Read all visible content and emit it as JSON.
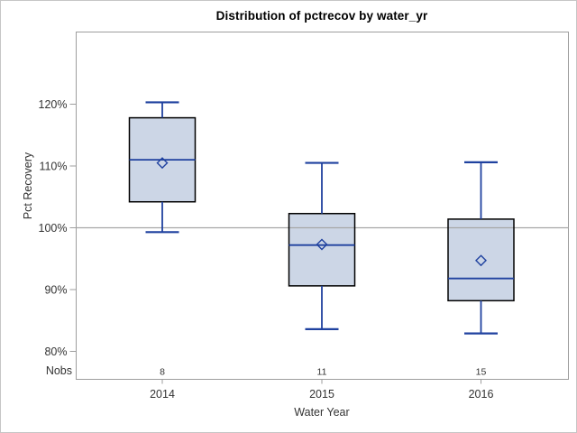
{
  "chart_data": {
    "type": "box",
    "title": "Distribution of pctrecov by water_yr",
    "xlabel": "Water Year",
    "ylabel": "Pct Recovery",
    "nobs_label": "Nobs",
    "categories": [
      "2014",
      "2015",
      "2016"
    ],
    "nobs": [
      "8",
      "11",
      "15"
    ],
    "y_ticks": [
      {
        "value": 80,
        "label": "80%"
      },
      {
        "value": 90,
        "label": "90%"
      },
      {
        "value": 100,
        "label": "100%"
      },
      {
        "value": 110,
        "label": "110%"
      },
      {
        "value": 120,
        "label": "120%"
      }
    ],
    "ylim": [
      75.5,
      127.5
    ],
    "reference_line": 100,
    "grid": "off",
    "legend": "none",
    "series": [
      {
        "category": "2014",
        "nobs": 8,
        "whisker_low": 99.3,
        "q1": 104.2,
        "median": 111.0,
        "mean": 110.5,
        "q3": 117.8,
        "whisker_high": 120.3
      },
      {
        "category": "2015",
        "nobs": 11,
        "whisker_low": 83.6,
        "q1": 90.6,
        "median": 97.2,
        "mean": 97.3,
        "q3": 102.3,
        "whisker_high": 110.5
      },
      {
        "category": "2016",
        "nobs": 15,
        "whisker_low": 82.9,
        "q1": 88.2,
        "median": 91.8,
        "mean": 94.7,
        "q3": 101.4,
        "whisker_high": 110.6
      }
    ],
    "colors": {
      "box_fill": "#ccd6e6",
      "box_border": "#000000",
      "blue_line": "#1f419f",
      "reference_line": "#a6a6a6",
      "axis_line": "#9d9d9d",
      "tick_text": "#333333",
      "title_text": "#000000",
      "outer_border": "#c6c6c6"
    }
  }
}
